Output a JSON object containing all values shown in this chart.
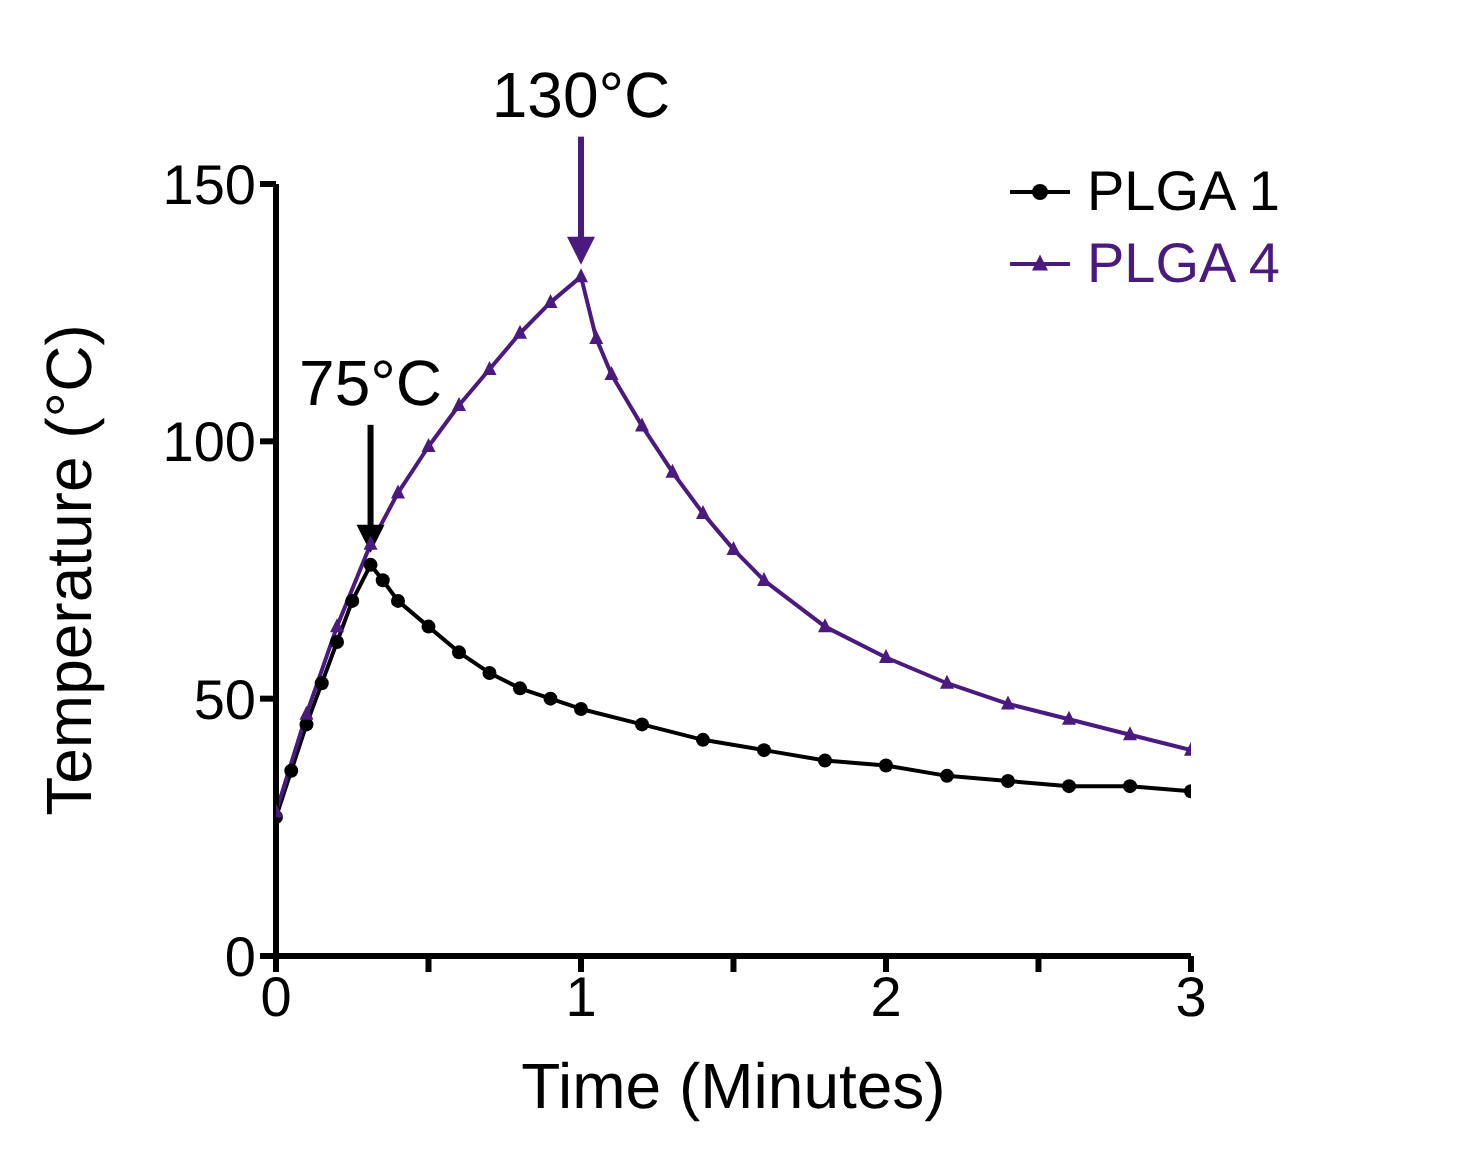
{
  "chart_data": {
    "type": "line",
    "xlabel": "Time (Minutes)",
    "ylabel": "Temperature (°C)",
    "xlim": [
      0,
      3
    ],
    "xticks": [
      0,
      {
        "value": 0.5,
        "label": null
      },
      1,
      {
        "value": 1.5,
        "label": null
      },
      2,
      {
        "value": 2.5,
        "label": null
      },
      3
    ],
    "ylim": [
      0,
      150
    ],
    "yticks": [
      0,
      50,
      100,
      150
    ],
    "grid": false,
    "legend": "top right",
    "line_style": "solid",
    "series": [
      {
        "name": "PLGA 1",
        "color": "#000000",
        "marker": "circle",
        "x": [
          0,
          0.05,
          0.1,
          0.15,
          0.2,
          0.25,
          0.31,
          0.35,
          0.4,
          0.5,
          0.6,
          0.7,
          0.8,
          0.9,
          1,
          1.2,
          1.4,
          1.6,
          1.8,
          2,
          2.2,
          2.4,
          2.6,
          2.8,
          3
        ],
        "values": [
          27,
          36,
          45,
          53,
          61,
          69,
          76,
          73,
          69,
          64,
          59,
          55,
          52,
          50,
          48,
          45,
          42,
          40,
          38,
          37,
          35,
          34,
          33,
          33,
          32
        ]
      },
      {
        "name": "PLGA 4",
        "color": "#4b1a7f",
        "marker": "triangle",
        "x": [
          0,
          0.1,
          0.2,
          0.31,
          0.4,
          0.5,
          0.6,
          0.7,
          0.8,
          0.9,
          1,
          1.05,
          1.1,
          1.2,
          1.3,
          1.4,
          1.5,
          1.6,
          1.8,
          2,
          2.2,
          2.4,
          2.6,
          2.8,
          3
        ],
        "values": [
          28,
          47,
          64,
          80,
          90,
          99,
          107,
          114,
          121,
          127,
          132,
          120,
          113,
          103,
          94,
          86,
          79,
          73,
          64,
          58,
          53,
          49,
          46,
          43,
          40
        ]
      }
    ],
    "annotations": [
      {
        "text": "75°C",
        "x": 0.31,
        "y": 76
      },
      {
        "text": "130°C",
        "x": 1,
        "y": 132
      }
    ]
  }
}
